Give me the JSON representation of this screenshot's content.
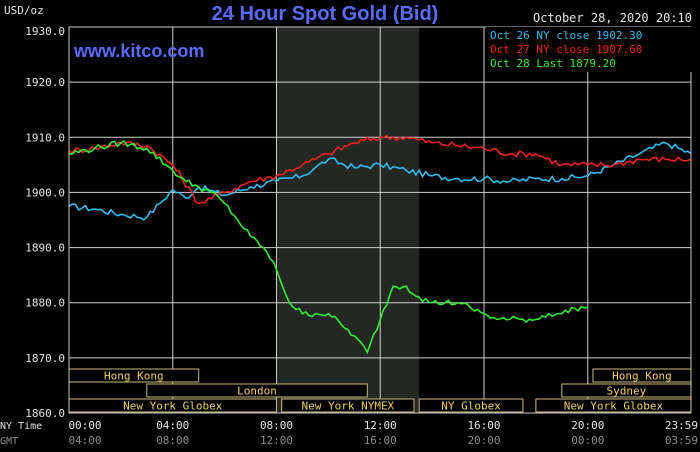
{
  "chart_data": {
    "type": "line",
    "title": "24 Hour Spot Gold (Bid)",
    "watermark": "www.kitco.com",
    "timestamp": "October 28, 2020 20:10",
    "ylabel": "USD/oz",
    "ylim": [
      1860.0,
      1930.0
    ],
    "yticks": [
      "1860.0",
      "1870.0",
      "1880.0",
      "1890.0",
      "1900.0",
      "1910.0",
      "1920.0",
      "1930.0"
    ],
    "grid": true,
    "legend_position": "top-right",
    "x_axis": {
      "ny_time_label": "NY Time",
      "gmt_label": "GMT",
      "ny_ticks": [
        "00:00",
        "04:00",
        "08:00",
        "12:00",
        "16:00",
        "20:00",
        "23:59"
      ],
      "gmt_ticks": [
        "04:00",
        "08:00",
        "12:00",
        "16:00",
        "20:00",
        "00:00",
        "03:59"
      ]
    },
    "series": [
      {
        "name": "Oct 26 NY close 1902.30",
        "color": "#33bbee",
        "x_hours": [
          0,
          1,
          2,
          3,
          3.5,
          4,
          4.5,
          5,
          6,
          7,
          8,
          9,
          9.5,
          10,
          11,
          12,
          13,
          14,
          15,
          16,
          17,
          18,
          19,
          20,
          21,
          22,
          23,
          23.98
        ],
        "values": [
          1897.5,
          1897,
          1896,
          1895.5,
          1898,
          1900.5,
          1899,
          1901,
          1899.5,
          1901,
          1902,
          1903,
          1904.5,
          1906,
          1904.5,
          1905,
          1904,
          1903,
          1902.5,
          1902.5,
          1902,
          1902.5,
          1902.5,
          1903,
          1905,
          1907,
          1909,
          1907
        ]
      },
      {
        "name": "Oct 27 NY close 1907.60",
        "color": "#ee2222",
        "x_hours": [
          0,
          1,
          2,
          3,
          4,
          5,
          6,
          7,
          8,
          9,
          10,
          11,
          12,
          13,
          14,
          15,
          16,
          17,
          18,
          19,
          20,
          21,
          22,
          23,
          23.98
        ],
        "values": [
          1907.5,
          1908,
          1909,
          1908.5,
          1905,
          1898,
          1900,
          1902,
          1903,
          1905,
          1907,
          1909,
          1910,
          1910,
          1909,
          1908.5,
          1908,
          1907,
          1907,
          1905,
          1905,
          1905,
          1906,
          1906,
          1906
        ]
      },
      {
        "name": "Oct 28 Last 1879.20",
        "color": "#33ee33",
        "x_hours": [
          0,
          1,
          2,
          3,
          4,
          4.5,
          5,
          5.5,
          6,
          6.5,
          7,
          7.5,
          8,
          8.5,
          9,
          9.5,
          10,
          10.5,
          11,
          11.5,
          12,
          12.5,
          13,
          13.5,
          14,
          14.5,
          15,
          15.5,
          16,
          16.5,
          17,
          17.5,
          18,
          18.5,
          19,
          19.5,
          20
        ],
        "values": [
          1907,
          1908,
          1909,
          1908,
          1904,
          1902,
          1901,
          1900,
          1898,
          1895,
          1892,
          1890,
          1886,
          1880,
          1878,
          1878,
          1878,
          1876,
          1874,
          1871,
          1877,
          1883,
          1883,
          1881,
          1880,
          1880,
          1880,
          1879,
          1878,
          1877,
          1877,
          1877,
          1877,
          1878,
          1878,
          1879,
          1879.2
        ]
      }
    ],
    "highlight": {
      "start_hour": 8,
      "end_hour": 13.5
    },
    "sessions": {
      "row1": [
        {
          "label": "Hong Kong",
          "start": -4,
          "end": 5
        },
        {
          "label": "Hong Kong",
          "start": 20.2,
          "end": 28
        }
      ],
      "row2": [
        {
          "label": "London",
          "start": 3,
          "end": 11.5
        },
        {
          "label": "Sydney",
          "start": 19,
          "end": 23.98
        }
      ],
      "row3": [
        {
          "label": "New York Globex",
          "start": 0,
          "end": 8
        },
        {
          "label": "New York NYMEX",
          "start": 8.2,
          "end": 13.3
        },
        {
          "label": "NY Globex",
          "start": 13.5,
          "end": 17.5
        },
        {
          "label": "New York Globex",
          "start": 18,
          "end": 23.98
        }
      ]
    }
  }
}
